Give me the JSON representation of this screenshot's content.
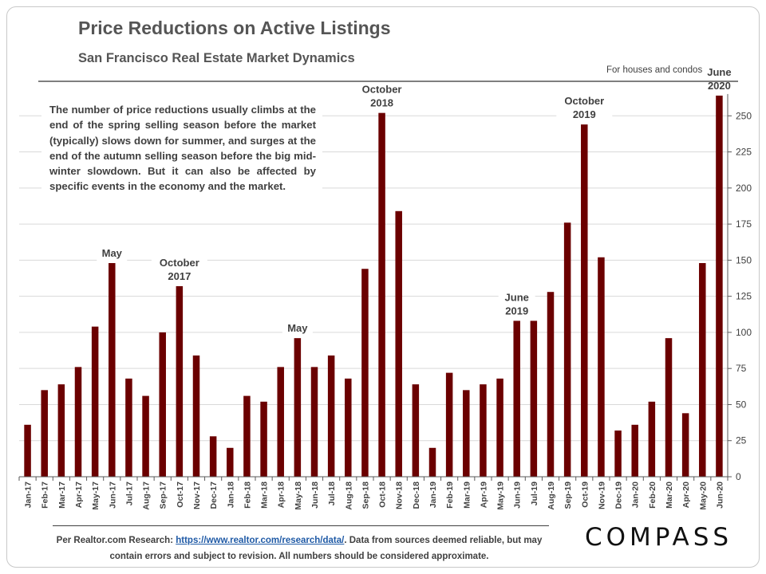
{
  "header": {
    "title": "Price Reductions on Active Listings",
    "subtitle": "San Francisco Real Estate Market Dynamics",
    "scope": "For houses and condos"
  },
  "note": "The number of price reductions usually climbs at the end of the spring selling season before the market (typically) slows down for summer, and surges at the end of the autumn selling season before the big mid-winter slowdown. But it can also be affected by specific events in the economy and the market.",
  "footer": {
    "prefix": "Per Realtor.com  Research:",
    "link": "https://www.realtor.com/research/data/",
    "suffix": ". Data from sources deemed reliable, but may contain errors and subject to revision. All numbers should be considered approximate."
  },
  "brand": "COMPASS",
  "chart_data": {
    "type": "bar",
    "title": "Price Reductions on Active Listings",
    "categories": [
      "Jan-17",
      "Feb-17",
      "Mar-17",
      "Apr-17",
      "May-17",
      "Jun-17",
      "Jul-17",
      "Aug-17",
      "Sep-17",
      "Oct-17",
      "Nov-17",
      "Dec-17",
      "Jan-18",
      "Feb-18",
      "Mar-18",
      "Apr-18",
      "May-18",
      "Jun-18",
      "Jul-18",
      "Aug-18",
      "Sep-18",
      "Oct-18",
      "Nov-18",
      "Dec-18",
      "Jan-19",
      "Feb-19",
      "Mar-19",
      "Apr-19",
      "May-19",
      "Jun-19",
      "Jul-19",
      "Aug-19",
      "Sep-19",
      "Oct-19",
      "Nov-19",
      "Dec-19",
      "Jan-20",
      "Feb-20",
      "Mar-20",
      "Apr-20",
      "May-20",
      "Jun-20"
    ],
    "values": [
      36,
      60,
      64,
      76,
      104,
      148,
      68,
      56,
      100,
      132,
      84,
      28,
      20,
      56,
      52,
      76,
      96,
      76,
      84,
      68,
      144,
      252,
      184,
      64,
      20,
      72,
      60,
      64,
      68,
      108,
      108,
      128,
      176,
      244,
      152,
      32,
      36,
      52,
      96,
      44,
      148,
      264
    ],
    "ylim": [
      0,
      275
    ],
    "yticks": [
      0,
      25,
      50,
      75,
      100,
      125,
      150,
      175,
      200,
      225,
      250
    ],
    "yaxis_side": "right",
    "bar_color": "#6b0000",
    "grid": true,
    "annotations": [
      {
        "index": 5,
        "lines": [
          "May"
        ]
      },
      {
        "index": 9,
        "lines": [
          "October",
          "2017"
        ]
      },
      {
        "index": 16,
        "lines": [
          "May"
        ]
      },
      {
        "index": 21,
        "lines": [
          "October",
          "2018"
        ]
      },
      {
        "index": 29,
        "lines": [
          "June",
          "2019"
        ]
      },
      {
        "index": 33,
        "lines": [
          "October",
          "2019"
        ]
      },
      {
        "index": 41,
        "lines": [
          "June",
          "2020"
        ]
      }
    ]
  }
}
